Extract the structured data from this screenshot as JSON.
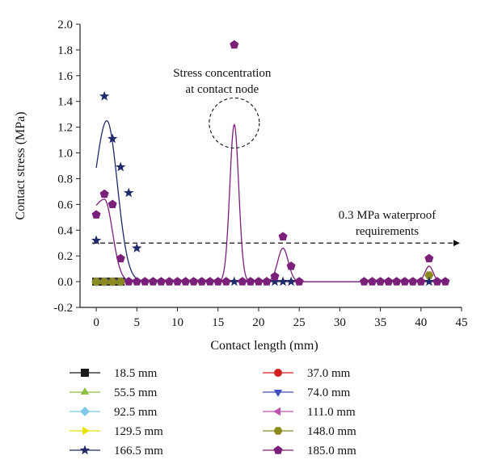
{
  "chart_data": {
    "type": "scatter",
    "xlabel": "Contact length (mm)",
    "ylabel": "Contact stress (MPa)",
    "xlim": [
      -2,
      45
    ],
    "ylim": [
      -0.2,
      2.0
    ],
    "xticks": [
      0,
      5,
      10,
      15,
      20,
      25,
      30,
      35,
      40,
      45
    ],
    "yticks": [
      -0.2,
      0.0,
      0.2,
      0.4,
      0.6,
      0.8,
      1.0,
      1.2,
      1.4,
      1.6,
      1.8,
      2.0
    ],
    "legend_position": "bottom",
    "annotations": [
      {
        "lines": [
          "Stress concentration",
          "at contact node"
        ],
        "x": 17,
        "y": 1.22
      },
      {
        "lines": [
          "0.3 MPa waterproof",
          "requirements"
        ],
        "x": 33.5,
        "y": 0.3
      }
    ],
    "threshold": {
      "y": 0.3,
      "x": [
        -0.5,
        44
      ]
    },
    "series": [
      {
        "name": "18.5 mm",
        "marker": "square",
        "color": "#1a1a1a",
        "points": [
          [
            0,
            0
          ],
          [
            1,
            0
          ],
          [
            2,
            0
          ],
          [
            3,
            0
          ]
        ]
      },
      {
        "name": "37.0 mm",
        "marker": "circle",
        "color": "#d62020",
        "points": [
          [
            0,
            0
          ],
          [
            1,
            0
          ],
          [
            2,
            0
          ],
          [
            3,
            0
          ]
        ]
      },
      {
        "name": "55.5 mm",
        "marker": "triangle-up",
        "color": "#8cbf3f",
        "points": [
          [
            0,
            0
          ],
          [
            1,
            0
          ],
          [
            2,
            0
          ],
          [
            3,
            0
          ]
        ]
      },
      {
        "name": "74.0 mm",
        "marker": "triangle-down",
        "color": "#3f4fbf",
        "points": [
          [
            0,
            0
          ],
          [
            1,
            0
          ],
          [
            2,
            0
          ],
          [
            3,
            0
          ]
        ]
      },
      {
        "name": "92.5 mm",
        "marker": "diamond",
        "color": "#7fc8e8",
        "points": [
          [
            0,
            0
          ],
          [
            1,
            0
          ],
          [
            2,
            0
          ],
          [
            3,
            0
          ]
        ]
      },
      {
        "name": "111.0 mm",
        "marker": "triangle-left",
        "color": "#c050b0",
        "points": [
          [
            0,
            0
          ],
          [
            1,
            0
          ],
          [
            2,
            0
          ],
          [
            3,
            0
          ]
        ]
      },
      {
        "name": "129.5 mm",
        "marker": "triangle-right",
        "color": "#e8e000",
        "points": [
          [
            0,
            0
          ],
          [
            1,
            0
          ],
          [
            2,
            0
          ],
          [
            3,
            0
          ]
        ]
      },
      {
        "name": "148.0 mm",
        "marker": "hexagon",
        "color": "#8a8a20",
        "points": [
          [
            0,
            0
          ],
          [
            1,
            0
          ],
          [
            2,
            0
          ],
          [
            3,
            0
          ],
          [
            41,
            0.05
          ]
        ]
      },
      {
        "name": "166.5 mm",
        "marker": "star",
        "color": "#1f2a6b",
        "curve": [
          {
            "base": 0.32,
            "peak": 1.25,
            "x0": 1.3,
            "sig": 1.3,
            "cutoff": 6.5
          }
        ],
        "points": [
          [
            0,
            0.32
          ],
          [
            1,
            1.44
          ],
          [
            2,
            1.11
          ],
          [
            3,
            0.89
          ],
          [
            4,
            0.69
          ],
          [
            5,
            0.26
          ],
          [
            17,
            0
          ],
          [
            21,
            0
          ],
          [
            22,
            0
          ],
          [
            23,
            0
          ],
          [
            24,
            0
          ],
          [
            41,
            0
          ]
        ]
      },
      {
        "name": "185.0 mm",
        "marker": "pentagon",
        "color": "#7a1f7a",
        "curve": [
          {
            "base": 0.52,
            "peak": 0.64,
            "x0": 1.0,
            "sig": 1.0,
            "cutoff": 3.6
          },
          {
            "base": 0.0,
            "peak": 1.22,
            "x0": 17.0,
            "sig": 0.55,
            "cutoff": 0
          },
          {
            "base": 0.0,
            "peak": 0.26,
            "x0": 23.0,
            "sig": 0.65,
            "cutoff": 0
          },
          {
            "base": 0.0,
            "peak": 0.12,
            "x0": 41.0,
            "sig": 0.5,
            "cutoff": 0
          }
        ],
        "points": [
          [
            0,
            0.52
          ],
          [
            1,
            0.68
          ],
          [
            2,
            0.6
          ],
          [
            3,
            0.18
          ],
          [
            4,
            0
          ],
          [
            5,
            0
          ],
          [
            6,
            0
          ],
          [
            7,
            0
          ],
          [
            8,
            0
          ],
          [
            9,
            0
          ],
          [
            10,
            0
          ],
          [
            11,
            0
          ],
          [
            12,
            0
          ],
          [
            13,
            0
          ],
          [
            14,
            0
          ],
          [
            15,
            0
          ],
          [
            16,
            0
          ],
          [
            17,
            1.84
          ],
          [
            18,
            0
          ],
          [
            19,
            0
          ],
          [
            20,
            0
          ],
          [
            21,
            0
          ],
          [
            22,
            0.04
          ],
          [
            23,
            0.35
          ],
          [
            24,
            0.12
          ],
          [
            25,
            0
          ],
          [
            33,
            0
          ],
          [
            34,
            0
          ],
          [
            35,
            0
          ],
          [
            36,
            0
          ],
          [
            37,
            0
          ],
          [
            38,
            0
          ],
          [
            39,
            0
          ],
          [
            40,
            0
          ],
          [
            41,
            0.18
          ],
          [
            42,
            0
          ],
          [
            43,
            0
          ]
        ]
      }
    ]
  }
}
